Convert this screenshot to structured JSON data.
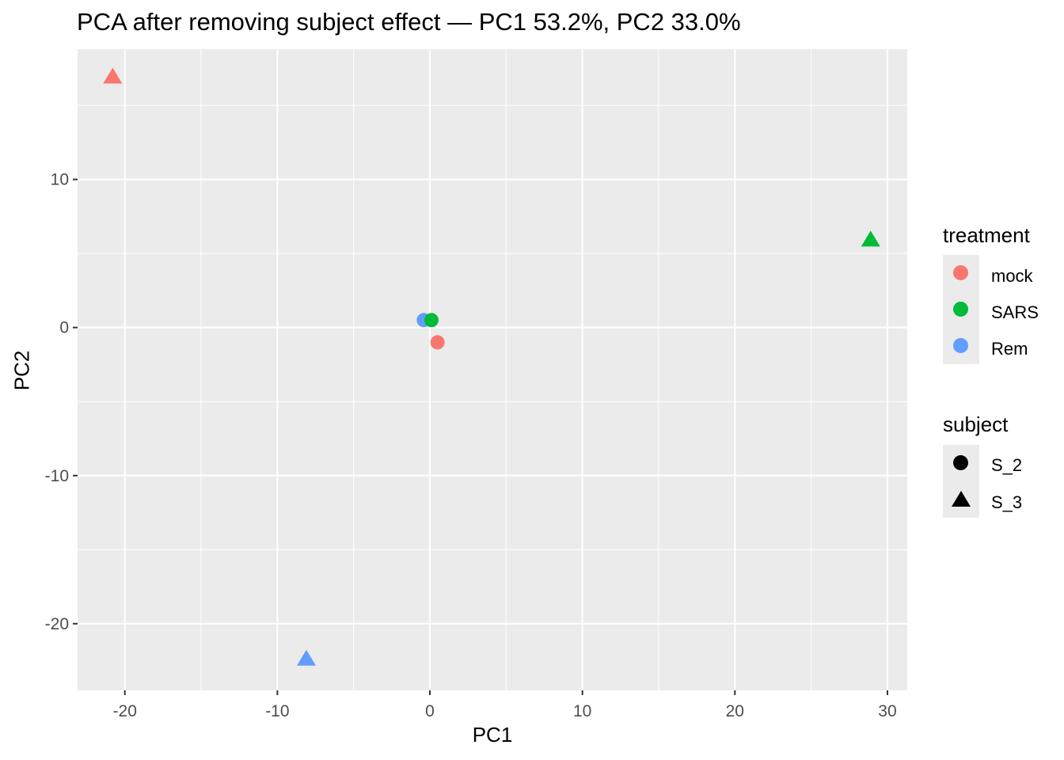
{
  "chart_data": {
    "type": "scatter",
    "title": "PCA after removing subject effect — PC1 53.2%, PC2 33.0%",
    "xlabel": "PC1",
    "ylabel": "PC2",
    "xlim": [
      -23.1,
      31.3
    ],
    "ylim": [
      -24.5,
      18.8
    ],
    "x_ticks": [
      -20,
      -10,
      0,
      10,
      20,
      30
    ],
    "y_ticks": [
      -20,
      -10,
      0,
      10
    ],
    "x_tick_labels": [
      "-20",
      "-10",
      "0",
      "10",
      "20",
      "30"
    ],
    "y_tick_labels": [
      "-20",
      "-10",
      "0",
      "10"
    ],
    "grid": true,
    "legend_position": "right",
    "colors": {
      "mock": "#F8766D",
      "SARS": "#00BA38",
      "Rem": "#619CFF"
    },
    "points": [
      {
        "x": -20.8,
        "y": 16.9,
        "treatment": "mock",
        "subject": "S_3"
      },
      {
        "x": 28.9,
        "y": 5.9,
        "treatment": "SARS",
        "subject": "S_3"
      },
      {
        "x": -8.1,
        "y": -22.4,
        "treatment": "Rem",
        "subject": "S_3"
      },
      {
        "x": -0.4,
        "y": 0.5,
        "treatment": "Rem",
        "subject": "S_2"
      },
      {
        "x": 0.1,
        "y": 0.5,
        "treatment": "SARS",
        "subject": "S_2"
      },
      {
        "x": 0.5,
        "y": -1.0,
        "treatment": "mock",
        "subject": "S_2"
      }
    ]
  },
  "legend": {
    "treatment": {
      "title": "treatment",
      "items": [
        {
          "label": "mock",
          "color": "#F8766D"
        },
        {
          "label": "SARS",
          "color": "#00BA38"
        },
        {
          "label": "Rem",
          "color": "#619CFF"
        }
      ]
    },
    "subject": {
      "title": "subject",
      "items": [
        {
          "label": "S_2",
          "shape": "circle"
        },
        {
          "label": "S_3",
          "shape": "triangle"
        }
      ]
    }
  }
}
